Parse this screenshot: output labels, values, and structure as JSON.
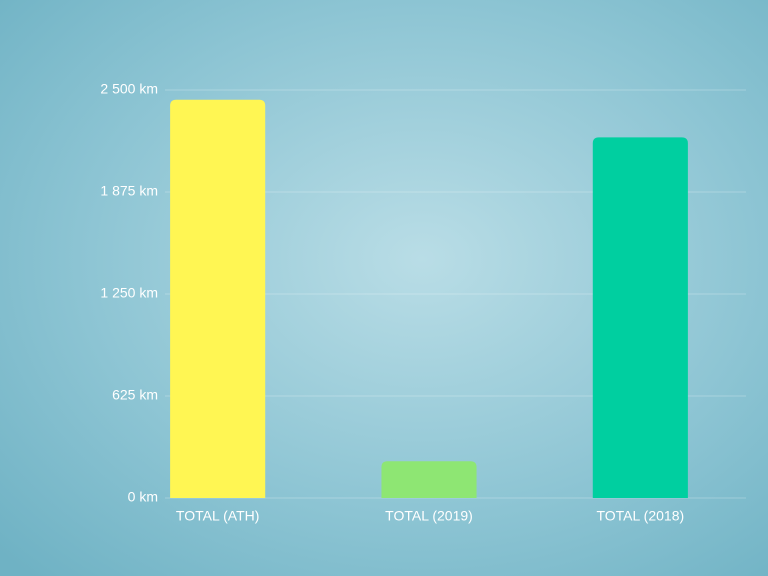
{
  "chart_data": {
    "type": "bar",
    "categories": [
      "TOTAL (ATH)",
      "TOTAL (2019)",
      "TOTAL (2018)"
    ],
    "values": [
      2440,
      225,
      2210
    ],
    "colors": [
      "#fff653",
      "#8ee673",
      "#00cfa0"
    ],
    "ylim": [
      0,
      2500
    ],
    "yticks": [
      {
        "value": 0,
        "label": "0 km"
      },
      {
        "value": 625,
        "label": "625 km"
      },
      {
        "value": 1250,
        "label": "1 250 km"
      },
      {
        "value": 1875,
        "label": "1 875 km"
      },
      {
        "value": 2500,
        "label": "2 500 km"
      }
    ],
    "grid": true
  }
}
